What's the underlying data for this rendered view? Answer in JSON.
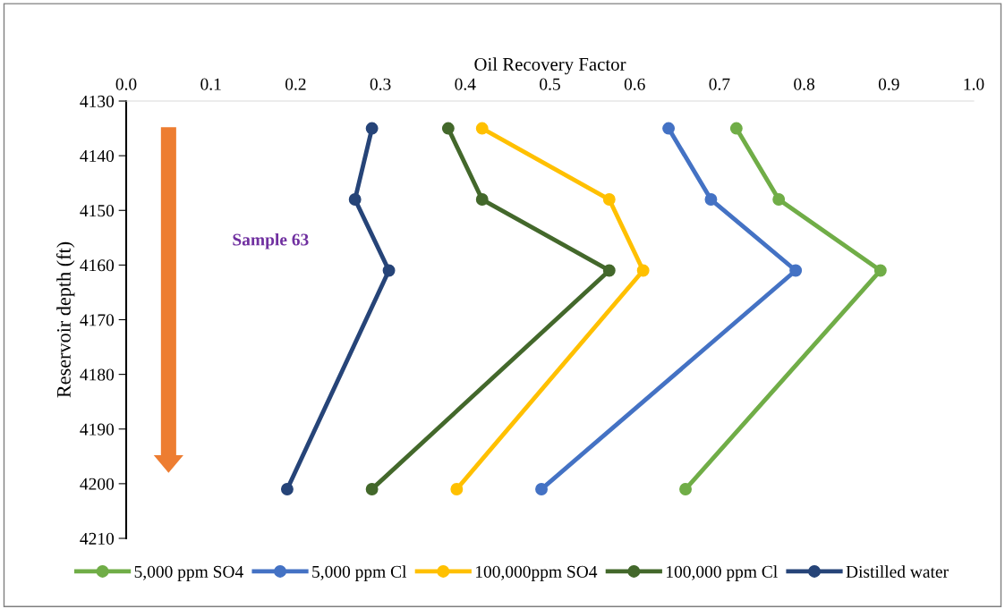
{
  "chart_data": {
    "type": "line",
    "xlabel": "Oil Recovery Factor",
    "ylabel": "Reservoir depth (ft)",
    "series": [
      {
        "name": "5,000 ppm SO4",
        "color": "#70ad47",
        "x": [
          0.72,
          0.77,
          0.89,
          0.66
        ],
        "values": [
          4135,
          4148,
          4161,
          4201
        ]
      },
      {
        "name": "5,000 ppm Cl",
        "color": "#4472c4",
        "x": [
          0.64,
          0.69,
          0.79,
          0.49
        ],
        "values": [
          4135,
          4148,
          4161,
          4201
        ]
      },
      {
        "name": "100,000ppm SO4",
        "color": "#ffc000",
        "x": [
          0.42,
          0.57,
          0.61,
          0.39
        ],
        "values": [
          4135,
          4148,
          4161,
          4201
        ]
      },
      {
        "name": "100,000 ppm Cl",
        "color": "#43682b",
        "x": [
          0.38,
          0.42,
          0.57,
          0.29
        ],
        "values": [
          4135,
          4148,
          4161,
          4201
        ]
      },
      {
        "name": "Distilled water",
        "color": "#264478",
        "x": [
          0.29,
          0.27,
          0.31,
          0.19
        ],
        "values": [
          4135,
          4148,
          4161,
          4201
        ]
      }
    ],
    "xlim": [
      0.0,
      1.0
    ],
    "xticks": [
      {
        "value": 0,
        "label": "0.0"
      },
      0.1,
      0.2,
      0.3,
      0.4,
      0.5,
      0.6,
      0.7,
      0.8,
      0.9,
      {
        "value": 1,
        "label": "1.0"
      }
    ],
    "ylim": [
      4210,
      4130
    ],
    "yticks": [
      4130,
      4140,
      4150,
      4160,
      4170,
      4180,
      4190,
      4200,
      4210
    ],
    "annotations": [
      "Sample 63"
    ],
    "marker": "circle",
    "line_style": "solid",
    "grid": false,
    "legend": "bottom"
  }
}
